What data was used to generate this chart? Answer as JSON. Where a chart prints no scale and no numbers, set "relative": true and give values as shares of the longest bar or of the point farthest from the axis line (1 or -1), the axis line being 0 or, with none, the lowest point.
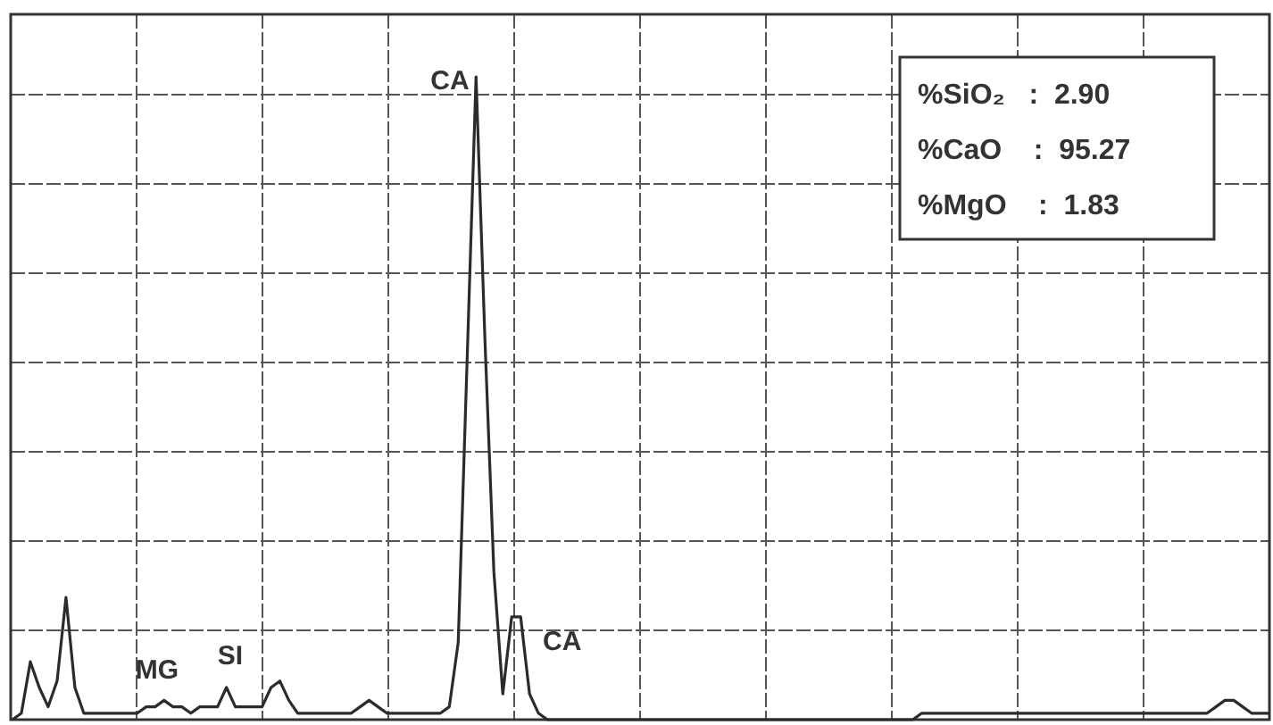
{
  "chart_data": {
    "type": "line",
    "relative": true,
    "grid": true,
    "marker": "none",
    "line_style": "solid",
    "categories": [
      null,
      null,
      null,
      null,
      null,
      null,
      null,
      null,
      null,
      null,
      null,
      null,
      null,
      null,
      null,
      null,
      null,
      null,
      null,
      null,
      null,
      null,
      null,
      null,
      null,
      null,
      null,
      null,
      null,
      null,
      null,
      null,
      null,
      null,
      null,
      null,
      null,
      null,
      null,
      null,
      null,
      null,
      null,
      null,
      null,
      null,
      null,
      null,
      null,
      null,
      null,
      null,
      null,
      null,
      null,
      null,
      null,
      null,
      null,
      null,
      null,
      null,
      null,
      null,
      null,
      null,
      null,
      null,
      null,
      null,
      null,
      null,
      null,
      null,
      null,
      null,
      null,
      null,
      null,
      null,
      null,
      null,
      null,
      null,
      null,
      null,
      null,
      null,
      null,
      null,
      null,
      null,
      null,
      null,
      null,
      null,
      null,
      null,
      null,
      null,
      null,
      null,
      null,
      null,
      null,
      null,
      null,
      null,
      null,
      null,
      null,
      null,
      null,
      null,
      null,
      null,
      null,
      null,
      null,
      null,
      null,
      null,
      null,
      null,
      null,
      null,
      null,
      null,
      null,
      null,
      null,
      null,
      null,
      null,
      null,
      null,
      null,
      null,
      null,
      null,
      null,
      null
    ],
    "series": [
      {
        "color": "#2b2b2b",
        "values": [
          0,
          0.01,
          0.09,
          0.05,
          0.02,
          0.06,
          0.19,
          0.05,
          0.01,
          0.01,
          0.01,
          0.01,
          0.01,
          0.01,
          0.01,
          0.02,
          0.02,
          0.03,
          0.02,
          0.02,
          0.01,
          0.02,
          0.02,
          0.02,
          0.05,
          0.02,
          0.02,
          0.02,
          0.02,
          0.05,
          0.06,
          0.03,
          0.01,
          0.01,
          0.01,
          0.01,
          0.01,
          0.01,
          0.01,
          0.02,
          0.03,
          0.02,
          0.01,
          0.01,
          0.01,
          0.01,
          0.01,
          0.01,
          0.01,
          0.02,
          0.12,
          0.56,
          1,
          0.59,
          0.23,
          0.04,
          0.16,
          0.16,
          0.04,
          0.01,
          0,
          0,
          0,
          0,
          0,
          0,
          0,
          0,
          0,
          0,
          0,
          0,
          0,
          0,
          0,
          0,
          0,
          0,
          0,
          0,
          0,
          0,
          0,
          0,
          0,
          0,
          0,
          0,
          0,
          0,
          0,
          0,
          0,
          0,
          0,
          0,
          0,
          0,
          0,
          0,
          0,
          0,
          0.01,
          0.01,
          0.01,
          0.01,
          0.01,
          0.01,
          0.01,
          0.01,
          0.01,
          0.01,
          0.01,
          0.01,
          0.01,
          0.01,
          0.01,
          0.01,
          0.01,
          0.01,
          0.01,
          0.01,
          0.01,
          0.01,
          0.01,
          0.01,
          0.01,
          0.01,
          0.01,
          0.01,
          0.01,
          0.01,
          0.01,
          0.01,
          0.01,
          0.02,
          0.03,
          0.03,
          0.02,
          0.01,
          0.01,
          0.01
        ]
      }
    ],
    "annotations": [
      "CA",
      "CA",
      "MG",
      "SI",
      "%SiO₂   :  2.90",
      "%CaO    :  95.27",
      "%MgO    :  1.83"
    ]
  }
}
